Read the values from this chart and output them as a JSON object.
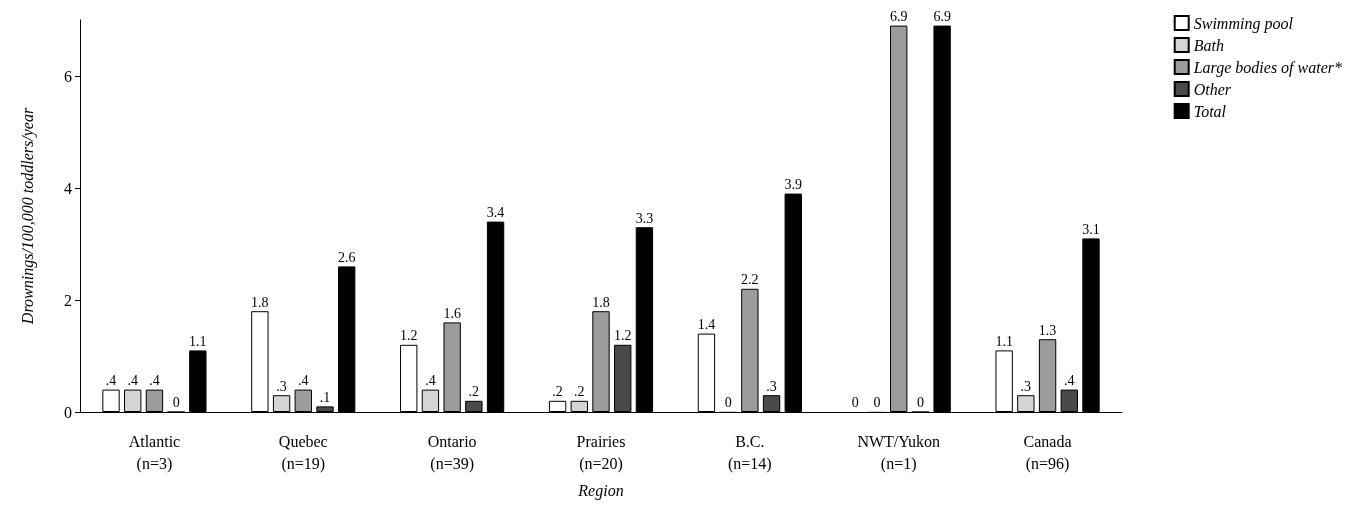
{
  "chart_data": {
    "type": "bar",
    "categories": [
      "Atlantic\n(n=3)",
      "Quebec\n(n=19)",
      "Ontario\n(n=39)",
      "Prairies\n(n=20)",
      "B.C.\n(n=14)",
      "NWT/Yukon\n(n=1)",
      "Canada\n(n=96)"
    ],
    "xlabel": "Region",
    "ylabel": "Drownings/100,000 toddlers/year",
    "series": [
      {
        "name": "Swimming pool",
        "color": "#ffffff",
        "values": [
          0.4,
          1.8,
          1.2,
          0.2,
          1.4,
          0,
          1.1
        ],
        "value_labels": [
          ".4",
          "1.8",
          "1.2",
          ".2",
          "1.4",
          "0",
          "1.1"
        ]
      },
      {
        "name": "Bath",
        "color": "#d4d4d4",
        "values": [
          0.4,
          0.3,
          0.4,
          0.2,
          0,
          0,
          0.3
        ],
        "value_labels": [
          ".4",
          ".3",
          ".4",
          ".2",
          "0",
          "0",
          ".3"
        ]
      },
      {
        "name": "Large bodies of water*",
        "color": "#9c9c9c",
        "values": [
          0.4,
          0.4,
          1.6,
          1.8,
          2.2,
          6.9,
          1.3
        ],
        "value_labels": [
          ".4",
          ".4",
          "1.6",
          "1.8",
          "2.2",
          "6.9",
          "1.3"
        ]
      },
      {
        "name": "Other",
        "color": "#4a4a4a",
        "values": [
          0,
          0.1,
          0.2,
          1.2,
          0.3,
          0,
          0.4
        ],
        "value_labels": [
          "0",
          ".1",
          ".2",
          "1.2",
          ".3",
          "0",
          ".4"
        ]
      },
      {
        "name": "Total",
        "color": "#000000",
        "values": [
          1.1,
          2.6,
          3.4,
          3.3,
          3.9,
          6.9,
          3.1
        ],
        "value_labels": [
          "1.1",
          "2.6",
          "3.4",
          "3.3",
          "3.9",
          "6.9",
          "3.1"
        ]
      }
    ],
    "ylim": [
      0,
      7
    ],
    "yticks": [
      0,
      2,
      4,
      6
    ],
    "grid": false,
    "legend": "top right"
  }
}
